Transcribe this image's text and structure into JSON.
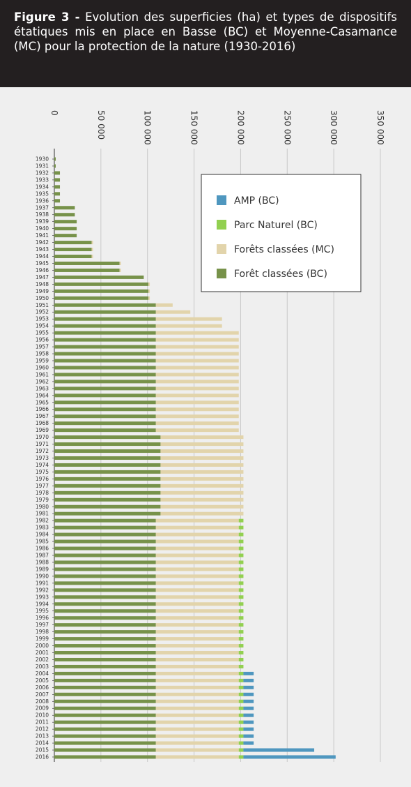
{
  "header": {
    "figure_label": "Figure 3 -",
    "title": "Evolution des superficies (ha) et types de dispositifs étatiques mis en place en Basse (BC) et Moyenne-Casamance (MC) pour la protection de la nature (1930-2016)"
  },
  "chart_data": {
    "type": "stacked-bar-horizontal",
    "categories": [
      "1930",
      "1931",
      "1932",
      "1933",
      "1934",
      "1935",
      "1936",
      "1937",
      "1938",
      "1939",
      "1940",
      "1941",
      "1942",
      "1943",
      "1944",
      "1945",
      "1946",
      "1947",
      "1948",
      "1949",
      "1950",
      "1951",
      "1952",
      "1953",
      "1954",
      "1955",
      "1956",
      "1957",
      "1958",
      "1959",
      "1960",
      "1961",
      "1962",
      "1963",
      "1964",
      "1965",
      "1966",
      "1967",
      "1968",
      "1969",
      "1970",
      "1971",
      "1972",
      "1973",
      "1974",
      "1975",
      "1976",
      "1977",
      "1978",
      "1979",
      "1980",
      "1981",
      "1982",
      "1983",
      "1984",
      "1985",
      "1986",
      "1987",
      "1988",
      "1989",
      "1990",
      "1991",
      "1992",
      "1993",
      "1994",
      "1995",
      "1996",
      "1997",
      "1998",
      "1999",
      "2000",
      "2001",
      "2002",
      "2003",
      "2004",
      "2005",
      "2006",
      "2007",
      "2008",
      "2009",
      "2010",
      "2011",
      "2012",
      "2013",
      "2014",
      "2015",
      "2016"
    ],
    "series": [
      {
        "name": "Forêt classées (BC)",
        "color": "#77924a",
        "values": [
          1500,
          1500,
          6000,
          6000,
          6000,
          6000,
          6000,
          22000,
          22000,
          24000,
          24000,
          24000,
          40000,
          40000,
          40000,
          70000,
          70000,
          96000,
          101000,
          101000,
          101000,
          109000,
          109000,
          109000,
          109000,
          109000,
          109000,
          109000,
          109000,
          109000,
          109000,
          109000,
          109000,
          109000,
          109000,
          109000,
          109000,
          109000,
          109000,
          109000,
          114000,
          114000,
          114000,
          114000,
          114000,
          114000,
          114000,
          114000,
          114000,
          114000,
          114000,
          114000,
          109000,
          109000,
          109000,
          109000,
          109000,
          109000,
          109000,
          109000,
          109000,
          109000,
          109000,
          109000,
          109000,
          109000,
          109000,
          109000,
          109000,
          109000,
          109000,
          109000,
          109000,
          109000,
          109000,
          109000,
          109000,
          109000,
          109000,
          109000,
          109000,
          109000,
          109000,
          109000,
          109000,
          109000,
          109000
        ]
      },
      {
        "name": "Forêts classées (MC)",
        "color": "#e2d4ab",
        "values": [
          0,
          0,
          0,
          0,
          0,
          0,
          0,
          0,
          0,
          0,
          0,
          0,
          1500,
          1500,
          1500,
          1500,
          1500,
          0,
          1500,
          1500,
          1500,
          18000,
          37000,
          71000,
          71000,
          89000,
          89000,
          89000,
          89000,
          89000,
          89000,
          89000,
          89000,
          89000,
          89000,
          89000,
          89000,
          89000,
          89000,
          89000,
          89000,
          89000,
          89000,
          89000,
          89000,
          89000,
          89000,
          89000,
          89000,
          89000,
          89000,
          89000,
          89000,
          89000,
          89000,
          89000,
          89000,
          89000,
          89000,
          89000,
          89000,
          89000,
          89000,
          89000,
          89000,
          89000,
          89000,
          89000,
          89000,
          89000,
          89000,
          89000,
          89000,
          89000,
          89000,
          89000,
          89000,
          89000,
          89000,
          89000,
          89000,
          89000,
          89000,
          89000,
          89000,
          89000,
          89000
        ]
      },
      {
        "name": "Parc Naturel (BC)",
        "color": "#92d050",
        "values": [
          0,
          0,
          0,
          0,
          0,
          0,
          0,
          0,
          0,
          0,
          0,
          0,
          0,
          0,
          0,
          0,
          0,
          0,
          0,
          0,
          0,
          0,
          0,
          0,
          0,
          0,
          0,
          0,
          0,
          0,
          0,
          0,
          0,
          0,
          0,
          0,
          0,
          0,
          0,
          0,
          0,
          0,
          0,
          0,
          0,
          0,
          0,
          0,
          0,
          0,
          0,
          0,
          5000,
          5000,
          5000,
          5000,
          5000,
          5000,
          5000,
          5000,
          5000,
          5000,
          5000,
          5000,
          5000,
          5000,
          5000,
          5000,
          5000,
          5000,
          5000,
          5000,
          5000,
          5000,
          5000,
          5000,
          5000,
          5000,
          5000,
          5000,
          5000,
          5000,
          5000,
          5000,
          5000,
          5000,
          5000
        ]
      },
      {
        "name": "AMP (BC)",
        "color": "#4f97bf",
        "values": [
          0,
          0,
          0,
          0,
          0,
          0,
          0,
          0,
          0,
          0,
          0,
          0,
          0,
          0,
          0,
          0,
          0,
          0,
          0,
          0,
          0,
          0,
          0,
          0,
          0,
          0,
          0,
          0,
          0,
          0,
          0,
          0,
          0,
          0,
          0,
          0,
          0,
          0,
          0,
          0,
          0,
          0,
          0,
          0,
          0,
          0,
          0,
          0,
          0,
          0,
          0,
          0,
          0,
          0,
          0,
          0,
          0,
          0,
          0,
          0,
          0,
          0,
          0,
          0,
          0,
          0,
          0,
          0,
          0,
          0,
          0,
          0,
          0,
          0,
          11000,
          11000,
          11000,
          11000,
          11000,
          11000,
          11000,
          11000,
          11000,
          11000,
          11000,
          76000,
          99000
        ]
      }
    ],
    "xlim": [
      0,
      350000
    ],
    "xticks": [
      0,
      {
        "value": 50000,
        "label": "50 000"
      },
      {
        "value": 100000,
        "label": "100 000"
      },
      {
        "value": 150000,
        "label": "150 000"
      },
      {
        "value": 200000,
        "label": "200 000"
      },
      {
        "value": 250000,
        "label": "250 000"
      },
      {
        "value": 300000,
        "label": "300 000"
      },
      {
        "value": 350000,
        "label": "350 000"
      }
    ],
    "grid": true
  }
}
